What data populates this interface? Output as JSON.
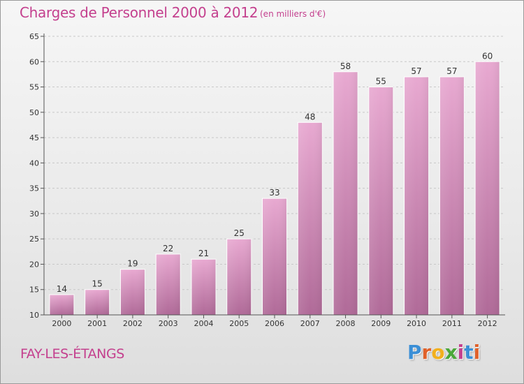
{
  "header": {
    "title": "Charges de Personnel 2000 à 2012",
    "unit": "(en milliers d'€)"
  },
  "location": "FAY-LES-ÉTANGS",
  "brand": {
    "name": "Proxiti",
    "letters": [
      {
        "char": "P",
        "color": "#3b8fd6"
      },
      {
        "char": "r",
        "color": "#e0612a"
      },
      {
        "char": "o",
        "color": "#f2b01e"
      },
      {
        "char": "x",
        "color": "#4aa838"
      },
      {
        "char": "i",
        "color": "#c4408e"
      },
      {
        "char": "t",
        "color": "#3b8fd6"
      },
      {
        "char": "i",
        "color": "#e0612a"
      }
    ]
  },
  "colors": {
    "accent": "#c4408e",
    "bar_top": "#e8a9d1",
    "bar_bottom": "#b06a98",
    "axis": "#555555",
    "grid": "#c8c8c8"
  },
  "chart_data": {
    "type": "bar",
    "title": "Charges de Personnel 2000 à 2012",
    "subtitle": "(en milliers d'€)",
    "categories": [
      "2000",
      "2001",
      "2002",
      "2003",
      "2004",
      "2005",
      "2006",
      "2007",
      "2008",
      "2009",
      "2010",
      "2011",
      "2012"
    ],
    "values": [
      14,
      15,
      19,
      22,
      21,
      25,
      33,
      48,
      58,
      55,
      57,
      57,
      60
    ],
    "ylim": [
      10,
      65
    ],
    "yticks": [
      10,
      15,
      20,
      25,
      30,
      35,
      40,
      45,
      50,
      55,
      60,
      65
    ],
    "grid": true,
    "data_labels": true,
    "xlabel": "",
    "ylabel": ""
  }
}
